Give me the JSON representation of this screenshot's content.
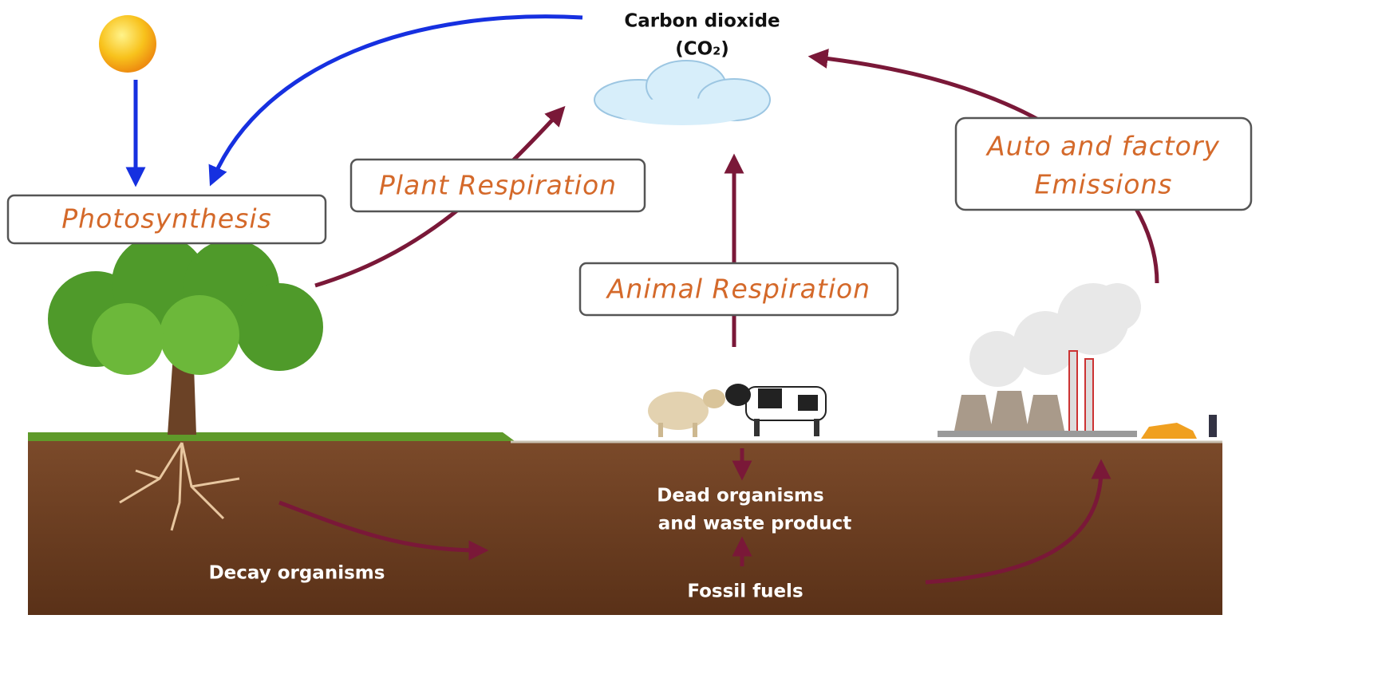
{
  "header": {
    "title_lines": [
      "Carbon dioxide",
      "(CO₂)"
    ]
  },
  "processes": [
    {
      "lines": [
        "Photosynthesis"
      ]
    },
    {
      "lines": [
        "Plant Respiration"
      ]
    },
    {
      "lines": [
        "Animal Respiration"
      ]
    },
    {
      "lines": [
        "Auto and factory",
        "Emissions"
      ]
    }
  ],
  "ground_labels": [
    {
      "lines": [
        "Dead organisms",
        "and waste product"
      ]
    },
    {
      "lines": [
        "Decay organisms"
      ]
    },
    {
      "lines": [
        "Fossil fuels"
      ]
    }
  ]
}
